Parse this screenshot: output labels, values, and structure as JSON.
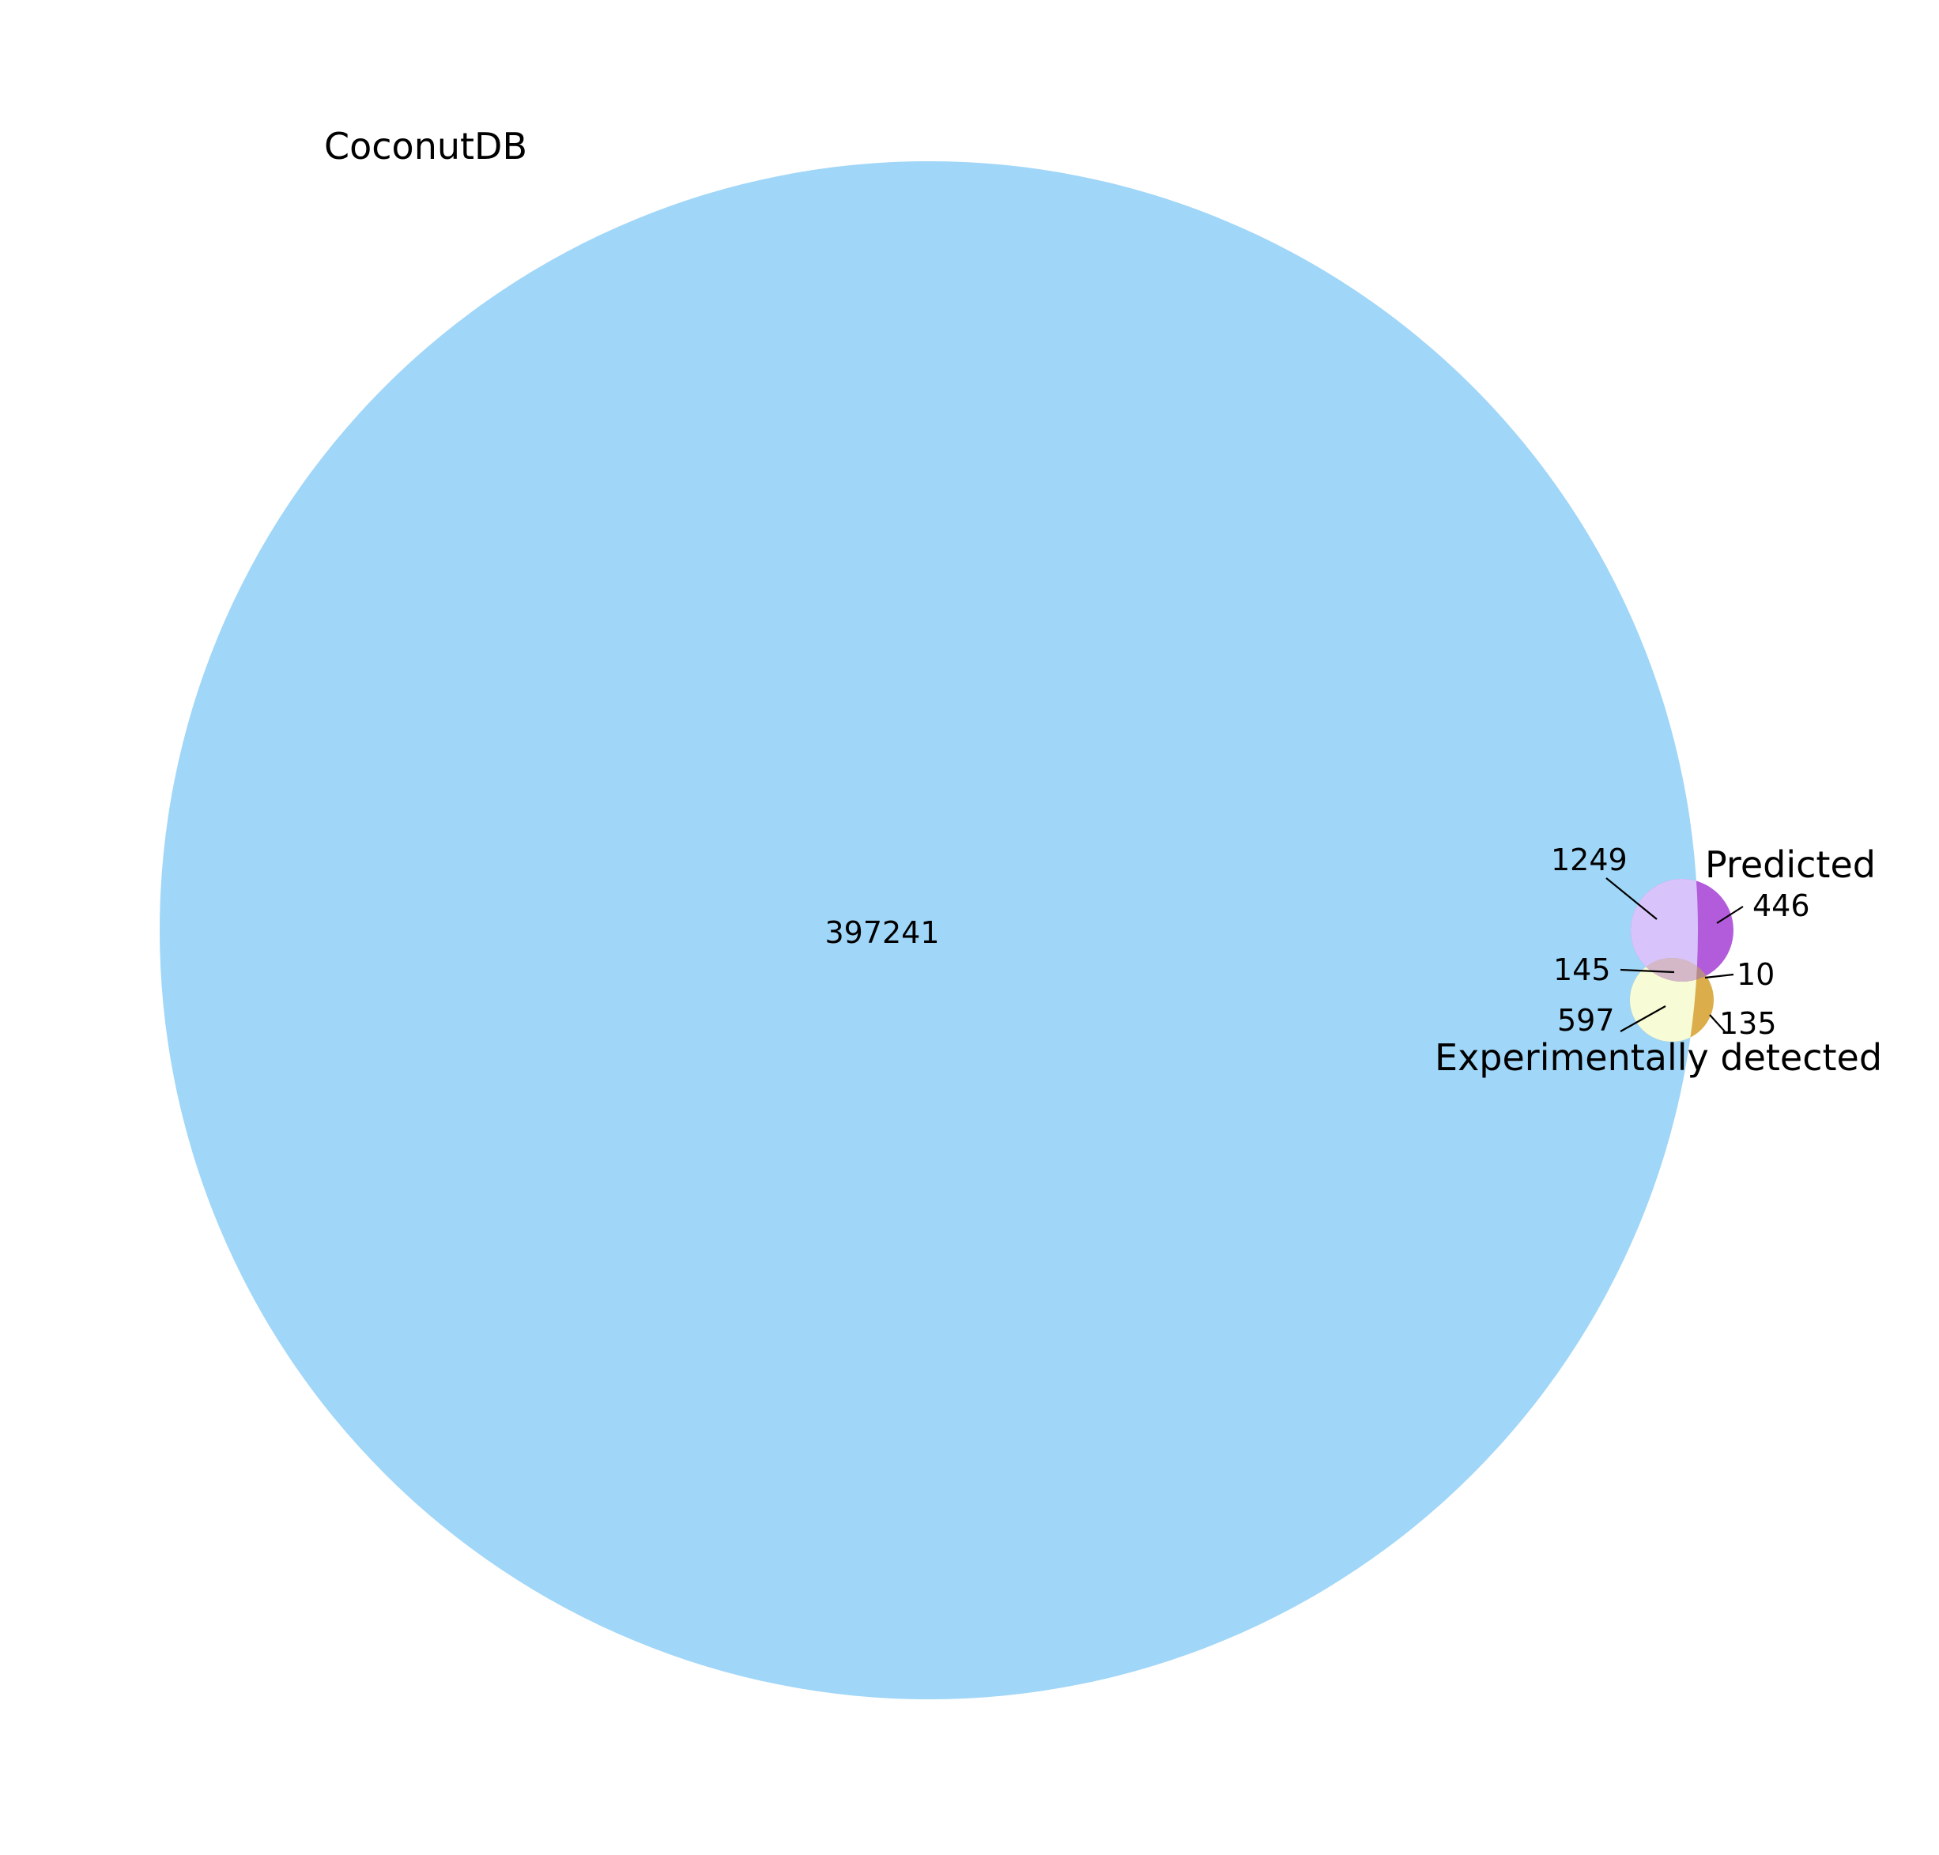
{
  "venn": {
    "sets": [
      {
        "id": "coconut",
        "name": "CoconutDB",
        "color": "#a0d6f8"
      },
      {
        "id": "predicted",
        "name": "Predicted",
        "color": "#b35cdb"
      },
      {
        "id": "experimental",
        "name": "Experimentally detected",
        "color": "#dcae4b"
      }
    ],
    "regions": {
      "coconut_only": "397241",
      "coconut_predicted": "1249",
      "predicted_only": "446",
      "coconut_predicted_experimental": "145",
      "predicted_experimental": "10",
      "coconut_experimental": "597",
      "experimental_only": "135"
    },
    "region_colors": {
      "coconut_predicted": "#d8c4fa",
      "coconut_experimental": "#f7fcd6",
      "coconut_predicted_experimental": "#d4b8c8",
      "predicted_experimental": "#b98a8a"
    }
  }
}
